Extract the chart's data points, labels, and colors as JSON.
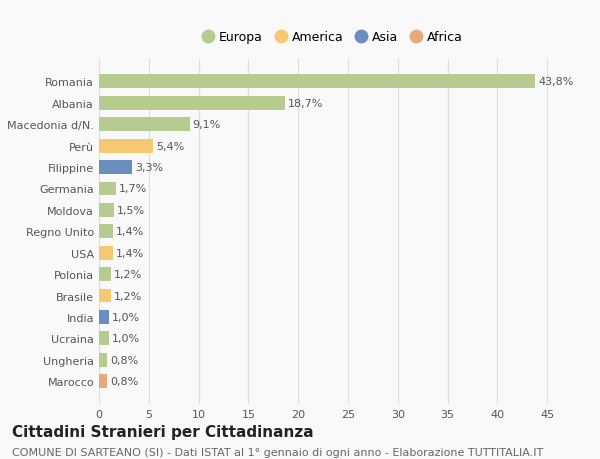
{
  "countries": [
    "Romania",
    "Albania",
    "Macedonia d/N.",
    "Perù",
    "Filippine",
    "Germania",
    "Moldova",
    "Regno Unito",
    "USA",
    "Polonia",
    "Brasile",
    "India",
    "Ucraina",
    "Ungheria",
    "Marocco"
  ],
  "values": [
    43.8,
    18.7,
    9.1,
    5.4,
    3.3,
    1.7,
    1.5,
    1.4,
    1.4,
    1.2,
    1.2,
    1.0,
    1.0,
    0.8,
    0.8
  ],
  "labels": [
    "43,8%",
    "18,7%",
    "9,1%",
    "5,4%",
    "3,3%",
    "1,7%",
    "1,5%",
    "1,4%",
    "1,4%",
    "1,2%",
    "1,2%",
    "1,0%",
    "1,0%",
    "0,8%",
    "0,8%"
  ],
  "colors": [
    "#b5cc8e",
    "#b5cc8e",
    "#b5cc8e",
    "#f5c872",
    "#6a8fbd",
    "#b5cc8e",
    "#b5cc8e",
    "#b5cc8e",
    "#f5c872",
    "#b5cc8e",
    "#f5c872",
    "#6a8fbd",
    "#b5cc8e",
    "#b5cc8e",
    "#e8a87c"
  ],
  "legend_labels": [
    "Europa",
    "America",
    "Asia",
    "Africa"
  ],
  "legend_colors": [
    "#b5cc8e",
    "#f5c872",
    "#6a8fbd",
    "#e8a87c"
  ],
  "xlim": [
    0,
    47
  ],
  "xticks": [
    0,
    5,
    10,
    15,
    20,
    25,
    30,
    35,
    40,
    45
  ],
  "title": "Cittadini Stranieri per Cittadinanza",
  "subtitle": "COMUNE DI SARTEANO (SI) - Dati ISTAT al 1° gennaio di ogni anno - Elaborazione TUTTITALIA.IT",
  "background_color": "#f9f9f9",
  "bar_height": 0.65,
  "grid_color": "#dddddd",
  "title_fontsize": 11,
  "subtitle_fontsize": 8,
  "label_fontsize": 8,
  "tick_fontsize": 8,
  "legend_fontsize": 9
}
